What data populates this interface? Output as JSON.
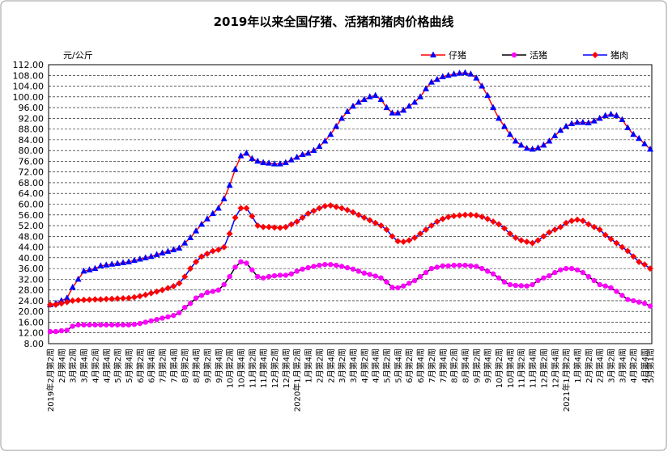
{
  "chart_data": {
    "type": "line",
    "title": "2019年以来全国仔猪、活猪和猪肉价格曲线",
    "y_label": "元/公斤",
    "categories": [
      "2019年2月第2周",
      null,
      "2月第4周",
      null,
      "3月第2周",
      null,
      "3月第4周",
      null,
      "4月第2周",
      null,
      "4月第4周",
      null,
      "5月第2周",
      null,
      "5月第4周",
      null,
      "6月第2周",
      null,
      "6月第4周",
      null,
      "7月第2周",
      null,
      "7月第4周",
      null,
      "8月第2周",
      null,
      "8月第4周",
      null,
      "9月第2周",
      null,
      "9月第4周",
      null,
      "10月第2周",
      null,
      "10月第4周",
      null,
      "11月第2周",
      null,
      "11月第4周",
      null,
      "12月第2周",
      null,
      "12月第4周",
      null,
      "2020年1月第2周",
      null,
      "1月第4周",
      null,
      "2月第2周",
      null,
      "2月第4周",
      null,
      "3月第2周",
      null,
      "3月第4周",
      null,
      "4月第2周",
      null,
      "4月第4周",
      null,
      "5月第2周",
      null,
      "5月第4周",
      null,
      "6月第2周",
      null,
      "6月第4周",
      null,
      "7月第2周",
      null,
      "7月第4周",
      null,
      "8月第2周",
      null,
      "8月第4周",
      null,
      "9月第2周",
      null,
      "9月第4周",
      null,
      "10月第2周",
      null,
      "10月第4周",
      null,
      "11月第2周",
      null,
      "11月第4周",
      null,
      "12月第2周",
      null,
      "12月第4周",
      null,
      "2021年1月第2周",
      null,
      "1月第4周",
      null,
      "2月第2周",
      null,
      "2月第4周",
      null,
      "3月第2周",
      null,
      "3月第4周",
      null,
      "4月第2周",
      null,
      "4月第4周",
      "5月第1周"
    ],
    "series": [
      {
        "name": "仔猪",
        "color": "#0000ff",
        "line_color": "#ff0000",
        "marker": "triangle",
        "values": [
          22.5,
          23,
          24,
          25,
          29,
          32,
          35,
          35.5,
          36,
          37,
          37.3,
          37.6,
          37.9,
          38.2,
          38.5,
          39,
          39.5,
          40,
          40.5,
          41.2,
          41.8,
          42.4,
          43,
          43.6,
          45.5,
          47.5,
          50,
          52.5,
          54.5,
          56.5,
          58.5,
          62,
          67,
          73,
          78,
          79,
          77,
          76,
          75.5,
          75.3,
          75,
          75,
          75.5,
          76.5,
          77.5,
          78.5,
          79,
          80,
          81.5,
          83.5,
          86,
          89,
          92,
          94.5,
          96.5,
          98,
          99,
          100,
          100.5,
          99,
          96,
          94,
          94,
          95,
          96.5,
          98,
          100,
          103,
          105.5,
          106.5,
          107.5,
          108,
          108.5,
          108.8,
          109,
          108.5,
          107,
          104,
          100.5,
          96,
          92,
          89,
          86,
          83.5,
          82,
          80.8,
          80.5,
          81,
          82,
          83.5,
          85.5,
          87.5,
          89,
          90,
          90.5,
          90.5,
          90.3,
          91,
          92,
          93,
          93.5,
          93,
          91.5,
          88.5,
          86,
          84.5,
          82.5,
          80.5
        ]
      },
      {
        "name": "活猪",
        "color": "#ff00ff",
        "line_color": "#000000",
        "marker": "circle",
        "values": [
          12.5,
          12.5,
          12.8,
          13,
          14.5,
          15,
          15,
          15,
          15,
          15,
          15,
          15,
          15,
          15,
          15,
          15.2,
          15.5,
          16,
          16.5,
          17,
          17.5,
          18,
          18.5,
          19.5,
          21.5,
          23,
          25,
          26,
          27,
          27.5,
          28,
          30,
          33,
          36.5,
          38.5,
          38,
          35.5,
          33,
          32.5,
          33,
          33.3,
          33.5,
          33.5,
          34,
          35,
          35.8,
          36.3,
          36.8,
          37.2,
          37.5,
          37.5,
          37.2,
          36.8,
          36.3,
          35.8,
          35,
          34.3,
          33.8,
          33.2,
          32.5,
          31,
          29,
          28.8,
          29.5,
          30.5,
          31.5,
          33,
          34.5,
          36,
          36.5,
          37,
          37,
          37.2,
          37.2,
          37.2,
          37,
          36.8,
          36,
          35,
          34,
          32.5,
          31,
          30,
          29.7,
          29.6,
          29.5,
          30,
          31.5,
          32.5,
          33.3,
          34.5,
          35.5,
          36,
          36,
          35.5,
          34.5,
          33,
          31.5,
          30,
          29.5,
          28.8,
          27.5,
          26,
          24.5,
          24,
          23.5,
          23,
          22
        ]
      },
      {
        "name": "猪肉",
        "color": "#ff0000",
        "line_color": "#0000ff",
        "marker": "diamond",
        "values": [
          22.5,
          22.5,
          23,
          23.5,
          24,
          24.2,
          24.3,
          24.4,
          24.5,
          24.5,
          24.6,
          24.7,
          24.8,
          24.9,
          25,
          25.3,
          25.7,
          26.2,
          26.8,
          27.4,
          28,
          28.7,
          29.4,
          30.5,
          33,
          36,
          38.5,
          40.5,
          41.5,
          42.5,
          43,
          44,
          49,
          55,
          58.5,
          58.5,
          55.5,
          52,
          51.5,
          51.5,
          51.3,
          51.2,
          51.5,
          52.5,
          53.5,
          55,
          56.5,
          57.5,
          58.5,
          59.3,
          59.5,
          59,
          58.5,
          57.8,
          57,
          56,
          55,
          54,
          53,
          52,
          50.5,
          48,
          46.2,
          46,
          46.5,
          47.5,
          49,
          50.5,
          52,
          53.5,
          54.5,
          55.2,
          55.6,
          55.8,
          56,
          56,
          55.8,
          55.3,
          54.5,
          53.5,
          52.5,
          51,
          49,
          47.5,
          46.5,
          46,
          45.5,
          46.5,
          48,
          49.5,
          50.5,
          51.5,
          53,
          53.8,
          54.2,
          53.8,
          52.5,
          51.5,
          50.5,
          48.5,
          47,
          45.5,
          44,
          42.5,
          40.5,
          38.5,
          37.5,
          36
        ]
      }
    ],
    "ylim": [
      8,
      112
    ],
    "yticks": [
      {
        "value": 8,
        "label": "8.00"
      },
      {
        "value": 12,
        "label": "12.00"
      },
      {
        "value": 16,
        "label": "16.00"
      },
      {
        "value": 20,
        "label": "20.00"
      },
      {
        "value": 24,
        "label": "24.00"
      },
      {
        "value": 28,
        "label": "28.00"
      },
      {
        "value": 32,
        "label": "32.00"
      },
      {
        "value": 36,
        "label": "36.00"
      },
      {
        "value": 40,
        "label": "40.00"
      },
      {
        "value": 44,
        "label": "44.00"
      },
      {
        "value": 48,
        "label": "48.00"
      },
      {
        "value": 52,
        "label": "52.00"
      },
      {
        "value": 56,
        "label": "56.00"
      },
      {
        "value": 60,
        "label": "60.00"
      },
      {
        "value": 64,
        "label": "64.00"
      },
      {
        "value": 68,
        "label": "68.00"
      },
      {
        "value": 72,
        "label": "72.00"
      },
      {
        "value": 76,
        "label": "76.00"
      },
      {
        "value": 80,
        "label": "80.00"
      },
      {
        "value": 84,
        "label": "84.00"
      },
      {
        "value": 88,
        "label": "88.00"
      },
      {
        "value": 92,
        "label": "92.00"
      },
      {
        "value": 96,
        "label": "96.00"
      },
      {
        "value": 100,
        "label": "100.00"
      },
      {
        "value": 104,
        "label": "104.00"
      },
      {
        "value": 108,
        "label": "108.00"
      },
      {
        "value": 112,
        "label": "112.00"
      }
    ],
    "grid": true,
    "legend": "top-right"
  }
}
